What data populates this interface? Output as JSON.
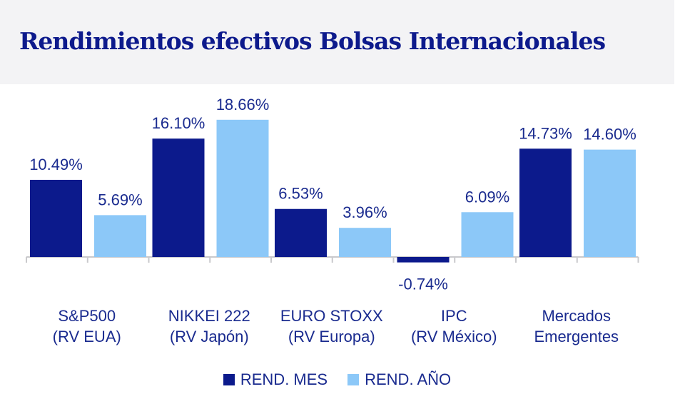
{
  "title": "Rendimientos efectivos Bolsas Internacionales",
  "colors": {
    "mes": "#0c1a8c",
    "anio": "#8cc8f8",
    "axis": "#c9c9cc",
    "text": "#1a2b8f"
  },
  "legend": {
    "mes": "REND. MES",
    "anio": "REND. AÑO"
  },
  "chart_data": {
    "type": "bar",
    "title": "Rendimientos efectivos Bolsas Internacionales",
    "categories": [
      [
        "S&P500",
        "(RV EUA)"
      ],
      [
        "NIKKEI 222",
        "(RV Japón)"
      ],
      [
        "EURO STOXX",
        "(RV Europa)"
      ],
      [
        "IPC",
        "(RV México)"
      ],
      [
        "Mercados",
        "Emergentes"
      ]
    ],
    "series": [
      {
        "name": "REND. MES",
        "values": [
          10.49,
          16.1,
          6.53,
          -0.74,
          14.73
        ],
        "labels": [
          "10.49%",
          "16.10%",
          "6.53%",
          "-0.74%",
          "14.73%"
        ]
      },
      {
        "name": "REND. AÑO",
        "values": [
          5.69,
          18.66,
          3.96,
          6.09,
          14.6
        ],
        "labels": [
          "5.69%",
          "18.66%",
          "3.96%",
          "6.09%",
          "14.60%"
        ]
      }
    ],
    "ylim": [
      -2,
      20
    ],
    "grid": false,
    "legend_position": "bottom"
  }
}
